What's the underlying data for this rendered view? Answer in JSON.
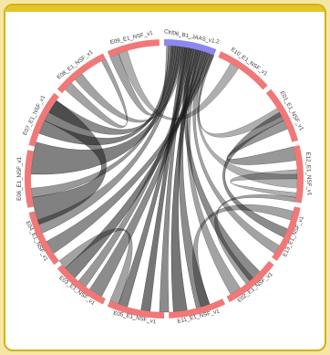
{
  "colors": {
    "segment": "#f07878",
    "highlight_segment": "#8a87f0",
    "ribbon": "#1a1a1a",
    "frame_border": "#d4b20f",
    "frame_top": "#e2c52a",
    "background": "#f6e6a6"
  },
  "segments": [
    {
      "label": "Ctrl06_B1_JAAS_v1.2",
      "highlight": true
    },
    {
      "label": "E10_E1_NSF_v1",
      "highlight": false
    },
    {
      "label": "E01_E1_NSF_v1",
      "highlight": false
    },
    {
      "label": "E12_E1_NSF_v1",
      "highlight": false
    },
    {
      "label": "E13_E1_NSF_v1",
      "highlight": false
    },
    {
      "label": "E02_E1_NSF_v1",
      "highlight": false
    },
    {
      "label": "E11_E1_NSF_v1",
      "highlight": false
    },
    {
      "label": "E05_E1_NSF_v1",
      "highlight": false
    },
    {
      "label": "E03_E1_NSF_v1",
      "highlight": false
    },
    {
      "label": "E04_E1_NSF_v1",
      "highlight": false
    },
    {
      "label": "E06_E1_NSF_v1",
      "highlight": false
    },
    {
      "label": "E07_E1_NSF_v1",
      "highlight": false
    },
    {
      "label": "E08_E1_NSF_v1",
      "highlight": false
    },
    {
      "label": "E09_E1_NSF_v1",
      "highlight": false
    }
  ]
}
